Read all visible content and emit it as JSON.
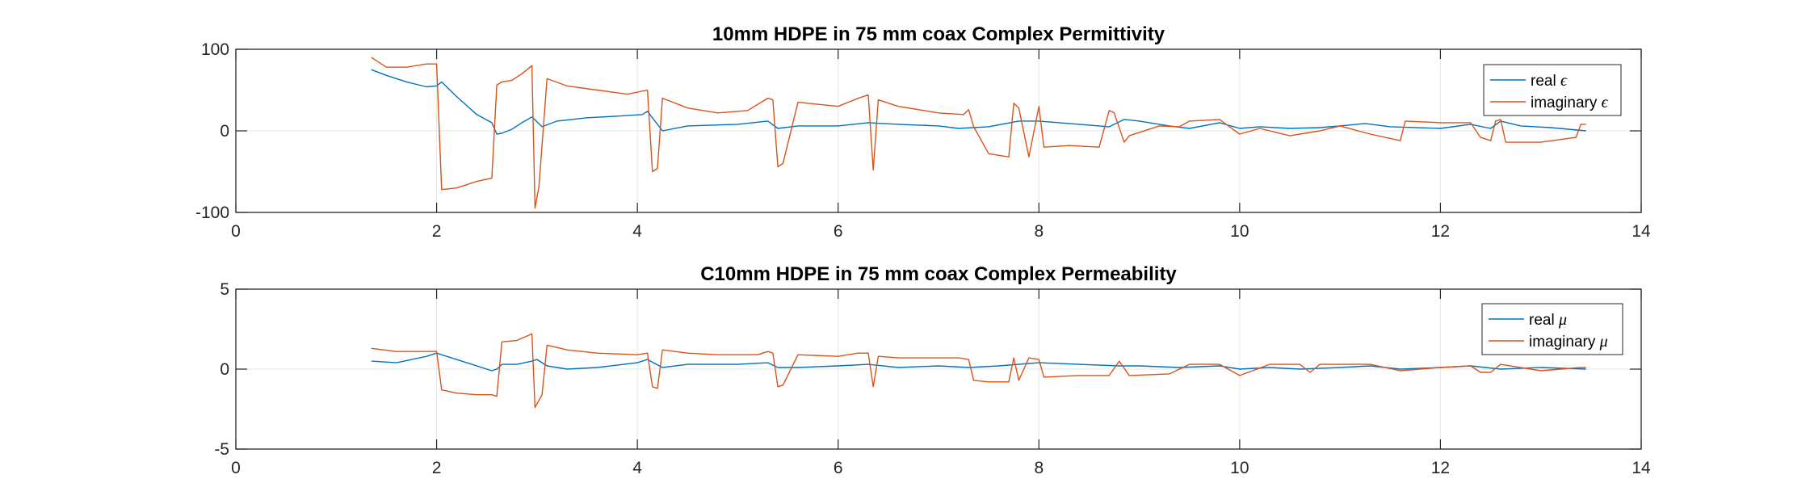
{
  "chart_data": [
    {
      "type": "line",
      "title": "10mm HDPE in 75 mm coax Complex Permittivity",
      "xlabel": "",
      "ylabel": "",
      "xlim": [
        0,
        14
      ],
      "ylim": [
        -100,
        100
      ],
      "xticks": [
        0,
        2,
        4,
        6,
        8,
        10,
        12,
        14
      ],
      "yticks": [
        -100,
        0,
        100
      ],
      "xtick_labels": [
        "0",
        "2",
        "4",
        "6",
        "8",
        "10",
        "12",
        "14"
      ],
      "ytick_labels": [
        "-100",
        "0",
        "100"
      ],
      "grid": true,
      "legend_position": "top-right",
      "series": [
        {
          "name": "real",
          "symbol": "ϵ",
          "color": "#0072BD",
          "x": [
            1.35,
            1.5,
            1.7,
            1.9,
            2.0,
            2.05,
            2.2,
            2.4,
            2.55,
            2.6,
            2.65,
            2.75,
            2.85,
            2.95,
            3.05,
            3.2,
            3.5,
            3.8,
            4.05,
            4.1,
            4.25,
            4.5,
            5.0,
            5.3,
            5.4,
            5.6,
            6.0,
            6.3,
            6.6,
            7.0,
            7.2,
            7.5,
            7.8,
            8.0,
            8.4,
            8.7,
            8.85,
            9.0,
            9.3,
            9.5,
            9.8,
            10.0,
            10.2,
            10.5,
            10.8,
            11.0,
            11.25,
            11.5,
            12.0,
            12.3,
            12.5,
            12.6,
            12.8,
            13.1,
            13.45
          ],
          "y": [
            75,
            68,
            60,
            54,
            55,
            60,
            42,
            20,
            10,
            -4,
            -3,
            2,
            10,
            17,
            5,
            12,
            16,
            18,
            20,
            24,
            0,
            6,
            8,
            12,
            3,
            6,
            6,
            10,
            8,
            6,
            3,
            5,
            12,
            12,
            8,
            5,
            14,
            12,
            6,
            3,
            10,
            3,
            5,
            3,
            4,
            6,
            9,
            5,
            3,
            8,
            3,
            12,
            6,
            4,
            0
          ]
        },
        {
          "name": "imaginary",
          "symbol": "ϵ",
          "color": "#D95319",
          "x": [
            1.35,
            1.5,
            1.7,
            1.9,
            2.0,
            2.05,
            2.2,
            2.4,
            2.55,
            2.6,
            2.65,
            2.75,
            2.85,
            2.95,
            2.98,
            3.02,
            3.1,
            3.3,
            3.6,
            3.9,
            4.1,
            4.15,
            4.2,
            4.25,
            4.5,
            4.8,
            5.1,
            5.3,
            5.35,
            5.4,
            5.45,
            5.6,
            6.0,
            6.2,
            6.3,
            6.35,
            6.4,
            6.6,
            7.0,
            7.25,
            7.3,
            7.35,
            7.5,
            7.7,
            7.75,
            7.8,
            7.9,
            8.0,
            8.05,
            8.3,
            8.6,
            8.7,
            8.75,
            8.85,
            8.9,
            9.2,
            9.4,
            9.5,
            9.8,
            10.0,
            10.2,
            10.5,
            10.8,
            11.0,
            11.3,
            11.6,
            11.65,
            12.0,
            12.3,
            12.4,
            12.5,
            12.55,
            12.6,
            12.65,
            13.0,
            13.35,
            13.4,
            13.45
          ],
          "y": [
            90,
            78,
            78,
            82,
            82,
            -72,
            -70,
            -62,
            -58,
            56,
            60,
            62,
            70,
            80,
            -95,
            -68,
            64,
            55,
            50,
            45,
            50,
            -50,
            -46,
            40,
            28,
            22,
            25,
            40,
            38,
            -44,
            -40,
            35,
            30,
            40,
            44,
            -48,
            38,
            30,
            22,
            20,
            26,
            5,
            -28,
            -32,
            34,
            28,
            -32,
            30,
            -20,
            -18,
            -20,
            25,
            22,
            -14,
            -6,
            6,
            5,
            12,
            14,
            -4,
            3,
            -6,
            0,
            6,
            -4,
            -12,
            12,
            10,
            10,
            -8,
            -12,
            12,
            14,
            -14,
            -14,
            -8,
            8,
            8
          ]
        }
      ]
    },
    {
      "type": "line",
      "title": "C10mm HDPE in 75 mm coax Complex Permeability",
      "xlabel": "",
      "ylabel": "",
      "xlim": [
        0,
        14
      ],
      "ylim": [
        -5,
        5
      ],
      "xticks": [
        0,
        2,
        4,
        6,
        8,
        10,
        12,
        14
      ],
      "yticks": [
        -5,
        0,
        5
      ],
      "xtick_labels": [
        "0",
        "2",
        "4",
        "6",
        "8",
        "10",
        "12",
        "14"
      ],
      "ytick_labels": [
        "-5",
        "0",
        "5"
      ],
      "grid": true,
      "legend_position": "top-right",
      "series": [
        {
          "name": "real",
          "symbol": "μ",
          "color": "#0072BD",
          "x": [
            1.35,
            1.6,
            1.9,
            2.0,
            2.1,
            2.3,
            2.55,
            2.6,
            2.65,
            2.8,
            2.95,
            3.0,
            3.1,
            3.3,
            3.6,
            4.0,
            4.1,
            4.25,
            4.5,
            5.0,
            5.3,
            5.4,
            5.6,
            6.0,
            6.3,
            6.6,
            7.0,
            7.3,
            7.6,
            8.0,
            8.4,
            8.8,
            9.0,
            9.4,
            9.8,
            10.0,
            10.3,
            10.6,
            11.0,
            11.3,
            11.6,
            12.0,
            12.3,
            12.6,
            13.0,
            13.45
          ],
          "y": [
            0.5,
            0.4,
            0.8,
            1.0,
            0.8,
            0.4,
            -0.1,
            0.0,
            0.3,
            0.3,
            0.5,
            0.6,
            0.2,
            0.0,
            0.1,
            0.4,
            0.6,
            0.1,
            0.3,
            0.3,
            0.4,
            0.1,
            0.1,
            0.2,
            0.3,
            0.1,
            0.2,
            0.1,
            0.2,
            0.4,
            0.3,
            0.2,
            0.2,
            0.1,
            0.2,
            0.0,
            0.1,
            0.0,
            0.1,
            0.2,
            0.0,
            0.1,
            0.2,
            0.0,
            0.1,
            0.0
          ]
        },
        {
          "name": "imaginary",
          "symbol": "μ",
          "color": "#D95319",
          "x": [
            1.35,
            1.6,
            1.9,
            2.0,
            2.05,
            2.2,
            2.4,
            2.55,
            2.6,
            2.65,
            2.8,
            2.95,
            2.98,
            3.05,
            3.1,
            3.3,
            3.6,
            4.0,
            4.1,
            4.15,
            4.2,
            4.25,
            4.5,
            4.8,
            5.2,
            5.3,
            5.35,
            5.4,
            5.45,
            5.6,
            6.0,
            6.2,
            6.3,
            6.35,
            6.4,
            6.6,
            7.2,
            7.3,
            7.35,
            7.5,
            7.7,
            7.75,
            7.8,
            7.9,
            8.0,
            8.05,
            8.4,
            8.7,
            8.8,
            8.9,
            9.3,
            9.5,
            9.8,
            10.0,
            10.3,
            10.6,
            10.7,
            10.8,
            11.0,
            11.3,
            11.6,
            12.0,
            12.3,
            12.4,
            12.5,
            12.6,
            13.0,
            13.4,
            13.45
          ],
          "y": [
            1.3,
            1.1,
            1.1,
            1.1,
            -1.3,
            -1.5,
            -1.6,
            -1.6,
            -1.7,
            1.7,
            1.8,
            2.2,
            -2.4,
            -1.6,
            1.5,
            1.2,
            1.0,
            0.9,
            1.0,
            -1.1,
            -1.2,
            1.2,
            1.0,
            0.9,
            0.9,
            1.1,
            1.0,
            -1.1,
            -1.0,
            0.9,
            0.8,
            1.0,
            1.0,
            -1.1,
            0.8,
            0.7,
            0.7,
            0.6,
            -0.7,
            -0.8,
            -0.8,
            0.7,
            -0.7,
            0.7,
            0.6,
            -0.5,
            -0.4,
            -0.4,
            0.5,
            -0.4,
            -0.3,
            0.3,
            0.3,
            -0.4,
            0.3,
            0.3,
            -0.2,
            0.3,
            0.3,
            0.3,
            -0.1,
            0.1,
            0.2,
            -0.2,
            -0.2,
            0.3,
            -0.1,
            0.1,
            0.1
          ]
        }
      ]
    }
  ]
}
